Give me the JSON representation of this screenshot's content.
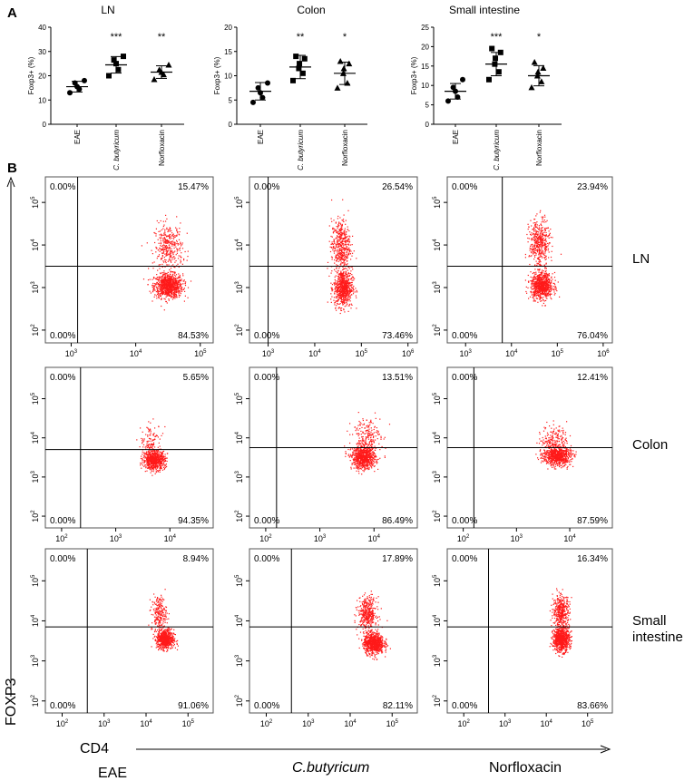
{
  "panel_labels": {
    "a": "A",
    "b": "B"
  },
  "y_axis_label": "FOXP3",
  "x_axis_label": "CD4",
  "group_labels": [
    "EAE",
    "C.butyricum",
    "Norfloxacin"
  ],
  "tissue_labels": [
    [
      "LN"
    ],
    [
      "Colon"
    ],
    [
      "Small",
      "intestine"
    ]
  ],
  "colors": {
    "dots": "#ff1a1a",
    "axis": "#000000",
    "frame": "#555555"
  },
  "chart_data": [
    {
      "type": "scatter",
      "title": "LN",
      "ylabel": "Foxp3+ (%)",
      "ylim": [
        0,
        40
      ],
      "yticks": [
        "0",
        "10",
        "20",
        "30",
        "40"
      ],
      "categories": [
        "EAE",
        "C. butyricum",
        "Norfloxacin"
      ],
      "markers": [
        "circle",
        "square",
        "triangle"
      ],
      "significance": [
        "",
        "***",
        "**"
      ],
      "mean": [
        15.5,
        24.5,
        21.5
      ],
      "sd": [
        2.2,
        3.4,
        2.6
      ],
      "values": [
        [
          13.0,
          14.5,
          15.5,
          17.0,
          18.0
        ],
        [
          20.0,
          22.5,
          25.0,
          26.5,
          28.0
        ],
        [
          18.5,
          20.5,
          21.5,
          22.5,
          24.5
        ]
      ]
    },
    {
      "type": "scatter",
      "title": "Colon",
      "ylabel": "Foxp3+ (%)",
      "ylim": [
        0,
        20
      ],
      "yticks": [
        "0",
        "5",
        "10",
        "15",
        "20"
      ],
      "categories": [
        "EAE",
        "C. butyricum",
        "Norfloxacin"
      ],
      "markers": [
        "circle",
        "square",
        "triangle"
      ],
      "significance": [
        "",
        "**",
        "*"
      ],
      "mean": [
        6.8,
        11.8,
        10.5
      ],
      "sd": [
        1.8,
        2.4,
        2.3
      ],
      "values": [
        [
          4.5,
          5.5,
          6.5,
          7.5,
          8.5
        ],
        [
          9.0,
          10.5,
          11.5,
          12.5,
          13.5,
          14.0
        ],
        [
          7.5,
          8.5,
          10.5,
          11.5,
          12.5,
          13.0
        ]
      ]
    },
    {
      "type": "scatter",
      "title": "Small intestine",
      "ylabel": "Foxp3+ (%)",
      "ylim": [
        0,
        25
      ],
      "yticks": [
        "0",
        "5",
        "10",
        "15",
        "20",
        "25"
      ],
      "categories": [
        "EAE",
        "C. butyricum",
        "Norfloxacin"
      ],
      "markers": [
        "circle",
        "square",
        "triangle"
      ],
      "significance": [
        "",
        "***",
        "*"
      ],
      "mean": [
        8.5,
        15.5,
        12.5
      ],
      "sd": [
        2.0,
        3.0,
        2.6
      ],
      "values": [
        [
          6.0,
          7.0,
          8.5,
          9.5,
          11.5
        ],
        [
          11.5,
          13.5,
          15.5,
          17.0,
          18.5,
          19.5
        ],
        [
          9.5,
          11.0,
          12.5,
          13.5,
          14.5,
          16.0
        ]
      ]
    },
    {
      "type": "scatter",
      "subtype": "flow_cytometry_quadrants",
      "xlabel": "CD4",
      "ylabel": "FOXP3",
      "rows": [
        "LN",
        "Colon",
        "Small intestine"
      ],
      "columns": [
        "EAE",
        "C.butyricum",
        "Norfloxacin"
      ],
      "panels": [
        [
          {
            "xticks": [
              "10^3",
              "10^4",
              "10^5"
            ],
            "yticks": [
              "10^2",
              "10^3",
              "10^4",
              "10^5"
            ],
            "x_range": [
              2.6,
              5.2
            ],
            "y_range": [
              1.7,
              5.6
            ],
            "x_gate": 3.1,
            "y_gate": 3.5,
            "q": {
              "ul": "0.00%",
              "ur": "15.47%",
              "ll": "0.00%",
              "lr": "84.53%"
            },
            "clusters": [
              {
                "cx": 4.5,
                "cy": 3.05,
                "sx": 0.11,
                "sy": 0.14,
                "n": 900
              },
              {
                "cx": 4.5,
                "cy": 3.95,
                "sx": 0.11,
                "sy": 0.28,
                "n": 360
              }
            ]
          },
          {
            "xticks": [
              "10^3",
              "10^4",
              "10^5",
              "10^6"
            ],
            "yticks": [
              "10^2",
              "10^3",
              "10^4",
              "10^5"
            ],
            "x_range": [
              2.6,
              6.2
            ],
            "y_range": [
              1.7,
              5.6
            ],
            "x_gate": 3.0,
            "y_gate": 3.5,
            "q": {
              "ul": "0.00%",
              "ur": "26.54%",
              "ll": "0.00%",
              "lr": "73.46%"
            },
            "clusters": [
              {
                "cx": 4.6,
                "cy": 3.0,
                "sx": 0.1,
                "sy": 0.22,
                "n": 700
              },
              {
                "cx": 4.55,
                "cy": 4.0,
                "sx": 0.1,
                "sy": 0.3,
                "n": 450
              }
            ]
          },
          {
            "xticks": [
              "10^3",
              "10^4",
              "10^5",
              "10^6"
            ],
            "yticks": [
              "10^2",
              "10^3",
              "10^4",
              "10^5"
            ],
            "x_range": [
              2.6,
              6.2
            ],
            "y_range": [
              1.7,
              5.6
            ],
            "x_gate": 3.8,
            "y_gate": 3.5,
            "q": {
              "ul": "0.00%",
              "ur": "23.94%",
              "ll": "0.00%",
              "lr": "76.04%"
            },
            "clusters": [
              {
                "cx": 4.65,
                "cy": 3.05,
                "sx": 0.12,
                "sy": 0.15,
                "n": 800
              },
              {
                "cx": 4.6,
                "cy": 4.05,
                "sx": 0.11,
                "sy": 0.28,
                "n": 450
              }
            ]
          }
        ],
        [
          {
            "xticks": [
              "10^2",
              "10^3",
              "10^4"
            ],
            "yticks": [
              "10^2",
              "10^3",
              "10^4",
              "10^5"
            ],
            "x_range": [
              1.7,
              4.8
            ],
            "y_range": [
              1.7,
              5.8
            ],
            "x_gate": 2.35,
            "y_gate": 3.7,
            "q": {
              "ul": "0.00%",
              "ur": "5.65%",
              "ll": "0.00%",
              "lr": "94.35%"
            },
            "clusters": [
              {
                "cx": 3.7,
                "cy": 3.45,
                "sx": 0.1,
                "sy": 0.12,
                "n": 750
              },
              {
                "cx": 3.65,
                "cy": 3.95,
                "sx": 0.1,
                "sy": 0.2,
                "n": 110
              }
            ]
          },
          {
            "xticks": [
              "10^2",
              "10^3",
              "10^4"
            ],
            "yticks": [
              "10^2",
              "10^3",
              "10^4",
              "10^5"
            ],
            "x_range": [
              1.7,
              4.8
            ],
            "y_range": [
              1.7,
              5.8
            ],
            "x_gate": 2.2,
            "y_gate": 3.75,
            "q": {
              "ul": "0.00%",
              "ur": "13.51%",
              "ll": "0.00%",
              "lr": "86.49%"
            },
            "clusters": [
              {
                "cx": 3.8,
                "cy": 3.5,
                "sx": 0.11,
                "sy": 0.14,
                "n": 750
              },
              {
                "cx": 3.85,
                "cy": 4.05,
                "sx": 0.13,
                "sy": 0.26,
                "n": 220
              }
            ]
          },
          {
            "xticks": [
              "10^2",
              "10^3",
              "10^4"
            ],
            "yticks": [
              "10^2",
              "10^3",
              "10^4",
              "10^5"
            ],
            "x_range": [
              1.7,
              4.8
            ],
            "y_range": [
              1.7,
              5.8
            ],
            "x_gate": 2.2,
            "y_gate": 3.75,
            "q": {
              "ul": "0.00%",
              "ur": "12.41%",
              "ll": "0.00%",
              "lr": "87.59%"
            },
            "clusters": [
              {
                "cx": 3.75,
                "cy": 3.55,
                "sx": 0.13,
                "sy": 0.12,
                "n": 750
              },
              {
                "cx": 3.7,
                "cy": 4.0,
                "sx": 0.12,
                "sy": 0.18,
                "n": 170
              }
            ]
          }
        ],
        [
          {
            "xticks": [
              "10^2",
              "10^3",
              "10^4",
              "10^5"
            ],
            "yticks": [
              "10^2",
              "10^3",
              "10^4",
              "10^5"
            ],
            "x_range": [
              1.6,
              5.6
            ],
            "y_range": [
              1.7,
              5.8
            ],
            "x_gate": 2.6,
            "y_gate": 3.85,
            "q": {
              "ul": "0.00%",
              "ur": "8.94%",
              "ll": "0.00%",
              "lr": "91.06%"
            },
            "clusters": [
              {
                "cx": 4.45,
                "cy": 3.55,
                "sx": 0.1,
                "sy": 0.12,
                "n": 700
              },
              {
                "cx": 4.3,
                "cy": 4.2,
                "sx": 0.09,
                "sy": 0.22,
                "n": 220
              }
            ]
          },
          {
            "xticks": [
              "10^2",
              "10^3",
              "10^4",
              "10^5"
            ],
            "yticks": [
              "10^2",
              "10^3",
              "10^4",
              "10^5"
            ],
            "x_range": [
              1.6,
              5.6
            ],
            "y_range": [
              1.7,
              5.8
            ],
            "x_gate": 2.6,
            "y_gate": 3.85,
            "q": {
              "ul": "0.00%",
              "ur": "17.89%",
              "ll": "0.00%",
              "lr": "82.11%"
            },
            "clusters": [
              {
                "cx": 4.55,
                "cy": 3.45,
                "sx": 0.12,
                "sy": 0.13,
                "n": 850
              },
              {
                "cx": 4.4,
                "cy": 4.2,
                "sx": 0.11,
                "sy": 0.2,
                "n": 400
              }
            ]
          },
          {
            "xticks": [
              "10^2",
              "10^3",
              "10^4",
              "10^5"
            ],
            "yticks": [
              "10^2",
              "10^3",
              "10^4",
              "10^5"
            ],
            "x_range": [
              1.6,
              5.6
            ],
            "y_range": [
              1.7,
              5.8
            ],
            "x_gate": 2.6,
            "y_gate": 3.85,
            "q": {
              "ul": "0.00%",
              "ur": "16.34%",
              "ll": "0.00%",
              "lr": "83.66%"
            },
            "clusters": [
              {
                "cx": 4.35,
                "cy": 3.55,
                "sx": 0.1,
                "sy": 0.15,
                "n": 800
              },
              {
                "cx": 4.35,
                "cy": 4.25,
                "sx": 0.1,
                "sy": 0.2,
                "n": 400
              }
            ]
          }
        ]
      ]
    }
  ]
}
